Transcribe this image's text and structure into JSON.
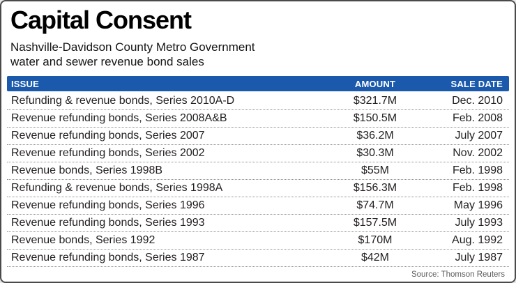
{
  "title": "Capital Consent",
  "subtitle_line1": "Nashville-Davidson County Metro Government",
  "subtitle_line2": "water and sewer revenue bond sales",
  "source": "Source: Thomson Reuters",
  "colors": {
    "header_bg": "#1b59ac",
    "header_text": "#ffffff",
    "row_text": "#242021",
    "frame_border": "#4a4a4a",
    "separator": "#8f8f8f",
    "source_text": "#5c5c5c"
  },
  "table": {
    "columns": [
      "ISSUE",
      "AMOUNT",
      "SALE DATE"
    ],
    "rows": [
      {
        "issue": "Refunding & revenue bonds, Series 2010A-D",
        "amount": "$321.7M",
        "sale_date": "Dec. 2010"
      },
      {
        "issue": "Revenue refunding bonds, Series 2008A&B",
        "amount": "$150.5M",
        "sale_date": "Feb. 2008"
      },
      {
        "issue": "Revenue refunding bonds, Series 2007",
        "amount": "$36.2M",
        "sale_date": "July 2007"
      },
      {
        "issue": "Revenue refunding bonds, Series 2002",
        "amount": "$30.3M",
        "sale_date": "Nov. 2002"
      },
      {
        "issue": "Revenue bonds, Series 1998B",
        "amount": "$55M",
        "sale_date": "Feb. 1998"
      },
      {
        "issue": "Refunding & revenue bonds, Series 1998A",
        "amount": "$156.3M",
        "sale_date": "Feb. 1998"
      },
      {
        "issue": "Revenue refunding bonds, Series 1996",
        "amount": "$74.7M",
        "sale_date": "May 1996"
      },
      {
        "issue": "Revenue refunding bonds, Series 1993",
        "amount": "$157.5M",
        "sale_date": "July 1993"
      },
      {
        "issue": "Revenue bonds, Series 1992",
        "amount": "$170M",
        "sale_date": "Aug. 1992"
      },
      {
        "issue": "Revenue refunding bonds, Series 1987",
        "amount": "$42M",
        "sale_date": "July 1987"
      }
    ]
  },
  "chart_data": {
    "type": "table",
    "title": "Capital Consent",
    "subtitle": "Nashville-Davidson County Metro Government water and sewer revenue bond sales",
    "columns": [
      "ISSUE",
      "AMOUNT",
      "SALE DATE"
    ],
    "rows": [
      [
        "Refunding & revenue bonds, Series 2010A-D",
        "$321.7M",
        "Dec. 2010"
      ],
      [
        "Revenue refunding bonds, Series 2008A&B",
        "$150.5M",
        "Feb. 2008"
      ],
      [
        "Revenue refunding bonds, Series 2007",
        "$36.2M",
        "July 2007"
      ],
      [
        "Revenue refunding bonds, Series 2002",
        "$30.3M",
        "Nov. 2002"
      ],
      [
        "Revenue bonds, Series 1998B",
        "$55M",
        "Feb. 1998"
      ],
      [
        "Refunding & revenue bonds, Series 1998A",
        "$156.3M",
        "Feb. 1998"
      ],
      [
        "Revenue refunding bonds, Series 1996",
        "$74.7M",
        "May 1996"
      ],
      [
        "Revenue refunding bonds, Series 1993",
        "$157.5M",
        "July 1993"
      ],
      [
        "Revenue bonds, Series 1992",
        "$170M",
        "Aug. 1992"
      ],
      [
        "Revenue refunding bonds, Series 1987",
        "$42M",
        "July 1987"
      ]
    ],
    "amounts_millions_usd": [
      321.7,
      150.5,
      36.2,
      30.3,
      55,
      156.3,
      74.7,
      157.5,
      170,
      42
    ],
    "source": "Source: Thomson Reuters"
  }
}
